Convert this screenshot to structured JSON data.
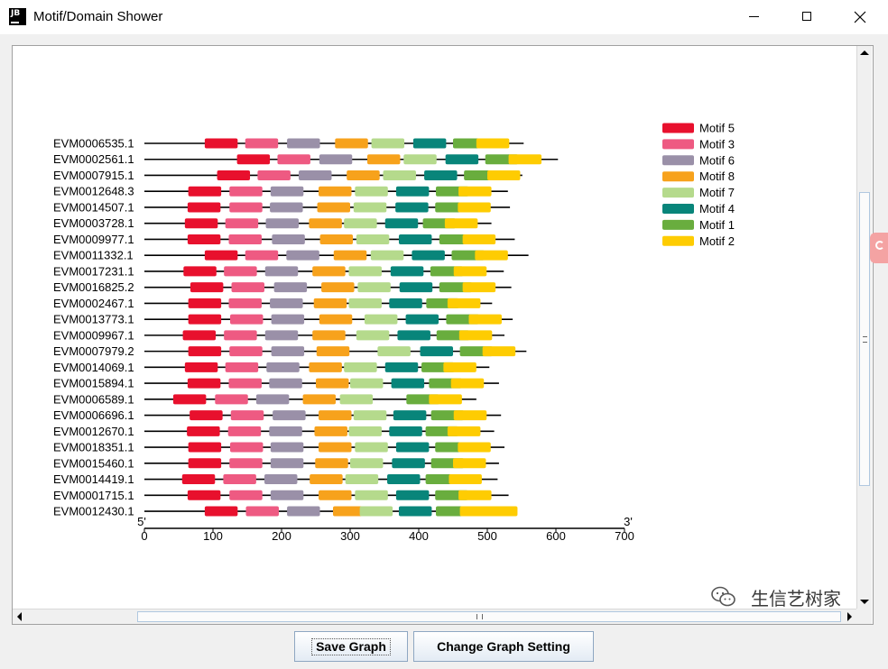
{
  "window": {
    "title": "Motif/Domain Shower",
    "icon_text": "JB"
  },
  "graph": {
    "five_prime": "5'",
    "three_prime": "3'",
    "axis_ticks": [
      0,
      100,
      200,
      300,
      400,
      500,
      600,
      700
    ],
    "axis_max": 700,
    "legend": [
      {
        "id": 5,
        "label": "Motif 5",
        "color": "#e8102d"
      },
      {
        "id": 3,
        "label": "Motif 3",
        "color": "#ee5a82"
      },
      {
        "id": 6,
        "label": "Motif 6",
        "color": "#9a90a8"
      },
      {
        "id": 8,
        "label": "Motif 8",
        "color": "#f7a21c"
      },
      {
        "id": 7,
        "label": "Motif 7",
        "color": "#b5da8c"
      },
      {
        "id": 4,
        "label": "Motif 4",
        "color": "#08857a"
      },
      {
        "id": 1,
        "label": "Motif 1",
        "color": "#69ad3e"
      },
      {
        "id": 2,
        "label": "Motif 2",
        "color": "#fecc02"
      }
    ],
    "sequences": [
      {
        "name": "EVM0006535.1",
        "length": 553,
        "motifs": [
          [
            5,
            88
          ],
          [
            3,
            147
          ],
          [
            6,
            208
          ],
          [
            8,
            278
          ],
          [
            7,
            331
          ],
          [
            4,
            392
          ],
          [
            1,
            450
          ],
          [
            2,
            484
          ]
        ]
      },
      {
        "name": "EVM0002561.1",
        "length": 603,
        "motifs": [
          [
            5,
            135
          ],
          [
            3,
            194
          ],
          [
            6,
            255
          ],
          [
            8,
            325
          ],
          [
            7,
            378
          ],
          [
            4,
            439
          ],
          [
            1,
            497
          ],
          [
            2,
            531
          ]
        ]
      },
      {
        "name": "EVM0007915.1",
        "length": 551,
        "motifs": [
          [
            5,
            106
          ],
          [
            3,
            165
          ],
          [
            6,
            225
          ],
          [
            8,
            295
          ],
          [
            7,
            348
          ],
          [
            4,
            408
          ],
          [
            1,
            466
          ],
          [
            2,
            500
          ]
        ]
      },
      {
        "name": "EVM0012648.3",
        "length": 530,
        "motifs": [
          [
            5,
            64
          ],
          [
            3,
            124
          ],
          [
            6,
            184
          ],
          [
            8,
            254
          ],
          [
            7,
            307
          ],
          [
            4,
            367
          ],
          [
            1,
            425
          ],
          [
            2,
            458
          ]
        ]
      },
      {
        "name": "EVM0014507.1",
        "length": 533,
        "motifs": [
          [
            5,
            63
          ],
          [
            3,
            124
          ],
          [
            6,
            183
          ],
          [
            8,
            252
          ],
          [
            7,
            305
          ],
          [
            4,
            366
          ],
          [
            1,
            424
          ],
          [
            2,
            457
          ]
        ]
      },
      {
        "name": "EVM0003728.1",
        "length": 506,
        "motifs": [
          [
            5,
            59
          ],
          [
            3,
            118
          ],
          [
            6,
            177
          ],
          [
            8,
            240
          ],
          [
            7,
            291
          ],
          [
            4,
            351
          ],
          [
            1,
            406
          ],
          [
            2,
            438
          ]
        ]
      },
      {
        "name": "EVM0009977.1",
        "length": 540,
        "motifs": [
          [
            5,
            63
          ],
          [
            3,
            123
          ],
          [
            6,
            186
          ],
          [
            8,
            256
          ],
          [
            7,
            309
          ],
          [
            4,
            371
          ],
          [
            1,
            430
          ],
          [
            2,
            464
          ]
        ]
      },
      {
        "name": "EVM0011332.1",
        "length": 560,
        "motifs": [
          [
            5,
            88
          ],
          [
            3,
            147
          ],
          [
            6,
            207
          ],
          [
            8,
            276
          ],
          [
            7,
            330
          ],
          [
            4,
            390
          ],
          [
            1,
            448
          ],
          [
            2,
            482
          ]
        ]
      },
      {
        "name": "EVM0017231.1",
        "length": 524,
        "motifs": [
          [
            5,
            57
          ],
          [
            3,
            116
          ],
          [
            6,
            176
          ],
          [
            8,
            245
          ],
          [
            7,
            298
          ],
          [
            4,
            359
          ],
          [
            1,
            417
          ],
          [
            2,
            451
          ]
        ]
      },
      {
        "name": "EVM0016825.2",
        "length": 535,
        "motifs": [
          [
            5,
            67
          ],
          [
            3,
            127
          ],
          [
            6,
            189
          ],
          [
            8,
            258
          ],
          [
            7,
            311
          ],
          [
            4,
            372
          ],
          [
            1,
            430
          ],
          [
            2,
            464
          ]
        ]
      },
      {
        "name": "EVM0002467.1",
        "length": 507,
        "motifs": [
          [
            5,
            64
          ],
          [
            3,
            123
          ],
          [
            6,
            183
          ],
          [
            8,
            247
          ],
          [
            7,
            298
          ],
          [
            4,
            357
          ],
          [
            1,
            411
          ],
          [
            2,
            442
          ]
        ]
      },
      {
        "name": "EVM0013773.1",
        "length": 537,
        "motifs": [
          [
            5,
            64
          ],
          [
            3,
            125
          ],
          [
            6,
            185
          ],
          [
            8,
            255
          ],
          [
            7,
            321
          ],
          [
            4,
            381
          ],
          [
            1,
            440
          ],
          [
            2,
            473
          ]
        ]
      },
      {
        "name": "EVM0009967.1",
        "length": 525,
        "motifs": [
          [
            5,
            56
          ],
          [
            3,
            116
          ],
          [
            6,
            176
          ],
          [
            8,
            245
          ],
          [
            7,
            309
          ],
          [
            4,
            369
          ],
          [
            1,
            426
          ],
          [
            2,
            459
          ]
        ]
      },
      {
        "name": "EVM0007979.2",
        "length": 557,
        "motifs": [
          [
            5,
            64
          ],
          [
            3,
            124
          ],
          [
            6,
            185
          ],
          [
            8,
            251
          ],
          [
            7,
            340
          ],
          [
            4,
            402
          ],
          [
            1,
            460
          ],
          [
            2,
            493
          ]
        ]
      },
      {
        "name": "EVM0014069.1",
        "length": 503,
        "motifs": [
          [
            5,
            59
          ],
          [
            3,
            118
          ],
          [
            6,
            178
          ],
          [
            8,
            240
          ],
          [
            7,
            291
          ],
          [
            4,
            351
          ],
          [
            1,
            404
          ],
          [
            2,
            436
          ]
        ]
      },
      {
        "name": "EVM0015894.1",
        "length": 517,
        "motifs": [
          [
            5,
            63
          ],
          [
            3,
            123
          ],
          [
            6,
            182
          ],
          [
            8,
            250
          ],
          [
            7,
            300
          ],
          [
            4,
            360
          ],
          [
            1,
            415
          ],
          [
            2,
            447
          ]
        ]
      },
      {
        "name": "EVM0006589.1",
        "length": 484,
        "motifs": [
          [
            5,
            42
          ],
          [
            3,
            103
          ],
          [
            6,
            163
          ],
          [
            8,
            231
          ],
          [
            7,
            285
          ],
          [
            1,
            382
          ],
          [
            2,
            415
          ]
        ]
      },
      {
        "name": "EVM0006696.1",
        "length": 520,
        "motifs": [
          [
            5,
            66
          ],
          [
            3,
            126
          ],
          [
            6,
            187
          ],
          [
            8,
            254
          ],
          [
            7,
            305
          ],
          [
            4,
            363
          ],
          [
            1,
            418
          ],
          [
            2,
            451
          ]
        ]
      },
      {
        "name": "EVM0012670.1",
        "length": 510,
        "motifs": [
          [
            5,
            62
          ],
          [
            3,
            122
          ],
          [
            6,
            182
          ],
          [
            8,
            248
          ],
          [
            7,
            298
          ],
          [
            4,
            357
          ],
          [
            1,
            410
          ],
          [
            2,
            442
          ]
        ]
      },
      {
        "name": "EVM0018351.1",
        "length": 525,
        "motifs": [
          [
            5,
            64
          ],
          [
            3,
            125
          ],
          [
            6,
            184
          ],
          [
            8,
            254
          ],
          [
            7,
            307
          ],
          [
            4,
            367
          ],
          [
            1,
            424
          ],
          [
            2,
            457
          ]
        ]
      },
      {
        "name": "EVM0015460.1",
        "length": 517,
        "motifs": [
          [
            5,
            64
          ],
          [
            3,
            124
          ],
          [
            6,
            184
          ],
          [
            8,
            249
          ],
          [
            7,
            300
          ],
          [
            4,
            361
          ],
          [
            1,
            418
          ],
          [
            2,
            450
          ]
        ]
      },
      {
        "name": "EVM0014419.1",
        "length": 515,
        "motifs": [
          [
            5,
            55
          ],
          [
            3,
            115
          ],
          [
            6,
            175
          ],
          [
            8,
            241
          ],
          [
            7,
            293
          ],
          [
            4,
            354
          ],
          [
            1,
            410
          ],
          [
            2,
            444
          ]
        ]
      },
      {
        "name": "EVM0001715.1",
        "length": 531,
        "motifs": [
          [
            5,
            63
          ],
          [
            3,
            124
          ],
          [
            6,
            184
          ],
          [
            8,
            254
          ],
          [
            7,
            307
          ],
          [
            4,
            367
          ],
          [
            1,
            424
          ],
          [
            2,
            458
          ]
        ]
      },
      {
        "name": "EVM0012430.1",
        "length": 540,
        "motifs": [
          [
            5,
            88
          ],
          [
            3,
            148
          ],
          [
            6,
            208
          ],
          [
            8,
            275
          ],
          [
            7,
            314
          ],
          [
            4,
            371
          ],
          [
            1,
            425
          ],
          [
            2,
            460
          ],
          [
            2,
            496
          ]
        ]
      }
    ]
  },
  "buttons": {
    "save": "Save Graph",
    "change": "Change Graph Setting"
  },
  "watermark": "生信艺树家"
}
